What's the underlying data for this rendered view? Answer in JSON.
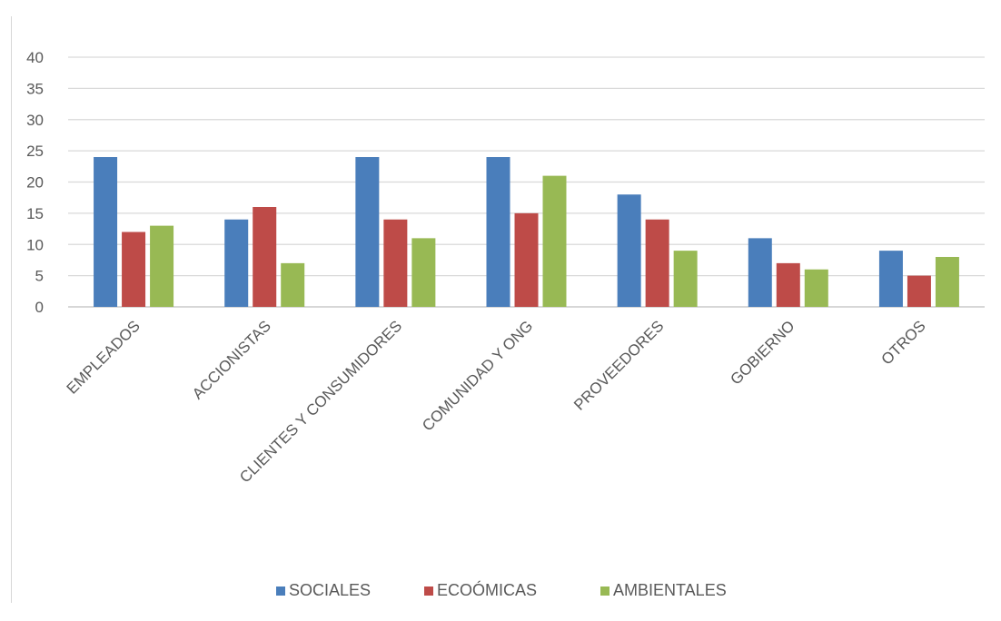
{
  "chart_data": {
    "type": "bar",
    "categories": [
      "EMPLEADOS",
      "ACCIONISTAS",
      "CLIENTES Y CONSUMIDORES",
      "COMUNIDAD Y ONG",
      "PROVEEDORES",
      "GOBIERNO",
      "OTROS"
    ],
    "series": [
      {
        "name": "SOCIALES",
        "color": "#4a7ebb",
        "values": [
          24,
          14,
          24,
          24,
          18,
          11,
          9
        ]
      },
      {
        "name": "ECOÓMICAS",
        "color": "#be4b48",
        "values": [
          12,
          16,
          14,
          15,
          14,
          7,
          5
        ]
      },
      {
        "name": "AMBIENTALES",
        "color": "#98b954",
        "values": [
          13,
          7,
          11,
          21,
          9,
          6,
          8
        ]
      }
    ],
    "ylim": [
      0,
      40
    ],
    "yticks": [
      0,
      5,
      10,
      15,
      20,
      25,
      30,
      35,
      40
    ],
    "grid": true,
    "legend_position": "bottom"
  }
}
